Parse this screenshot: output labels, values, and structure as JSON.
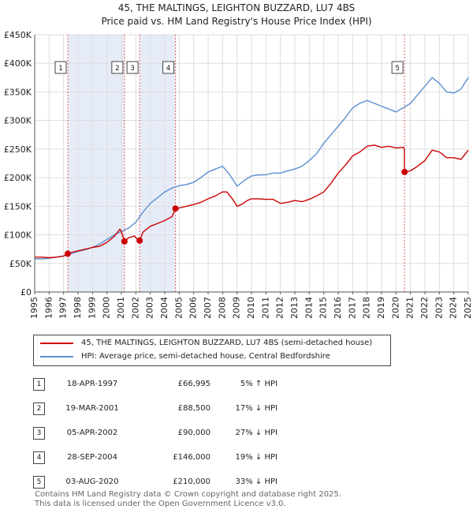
{
  "title_line1": "45, THE MALTINGS, LEIGHTON BUZZARD, LU7 4BS",
  "title_line2": "Price paid vs. HM Land Registry's House Price Index (HPI)",
  "colors": {
    "property": "#cc0000",
    "hpi": "#5b8fd0",
    "shade": "#e6ecf7",
    "vline": "#e06060"
  },
  "legend": {
    "property": "45, THE MALTINGS, LEIGHTON BUZZARD, LU7 4BS (semi-detached house)",
    "hpi": "HPI: Average price, semi-detached house, Central Bedfordshire"
  },
  "sales": [
    {
      "num": "1",
      "date": "18-APR-1997",
      "price": "£66,995",
      "hpi": "5% ↑ HPI"
    },
    {
      "num": "2",
      "date": "19-MAR-2001",
      "price": "£88,500",
      "hpi": "17% ↓ HPI"
    },
    {
      "num": "3",
      "date": "05-APR-2002",
      "price": "£90,000",
      "hpi": "27% ↓ HPI"
    },
    {
      "num": "4",
      "date": "28-SEP-2004",
      "price": "£146,000",
      "hpi": "19% ↓ HPI"
    },
    {
      "num": "5",
      "date": "03-AUG-2020",
      "price": "£210,000",
      "hpi": "33% ↓ HPI"
    }
  ],
  "footer_line1": "Contains HM Land Registry data © Crown copyright and database right 2025.",
  "footer_line2": "This data is licensed under the Open Government Licence v3.0.",
  "chart_data": {
    "type": "line",
    "title": "45, THE MALTINGS, LEIGHTON BUZZARD, LU7 4BS",
    "subtitle": "Price paid vs. HM Land Registry's House Price Index (HPI)",
    "xlabel": "",
    "ylabel": "",
    "xlim": [
      1995,
      2025
    ],
    "ylim": [
      0,
      450000
    ],
    "y_ticks": [
      0,
      50000,
      100000,
      150000,
      200000,
      250000,
      300000,
      350000,
      400000,
      450000
    ],
    "y_tick_labels": [
      "£0",
      "£50K",
      "£100K",
      "£150K",
      "£200K",
      "£250K",
      "£300K",
      "£350K",
      "£400K",
      "£450K"
    ],
    "x_ticks": [
      1995,
      1996,
      1997,
      1998,
      1999,
      2000,
      2001,
      2002,
      2003,
      2004,
      2005,
      2006,
      2007,
      2008,
      2009,
      2010,
      2011,
      2012,
      2013,
      2014,
      2015,
      2016,
      2017,
      2018,
      2019,
      2020,
      2021,
      2022,
      2023,
      2024,
      2025
    ],
    "grid": true,
    "sale_markers": [
      {
        "label": "1",
        "x": 1997.29,
        "y": 66995
      },
      {
        "label": "2",
        "x": 2001.21,
        "y": 88500
      },
      {
        "label": "3",
        "x": 2002.26,
        "y": 90000
      },
      {
        "label": "4",
        "x": 2004.74,
        "y": 146000
      },
      {
        "label": "5",
        "x": 2020.59,
        "y": 210000
      }
    ],
    "shaded_ranges": [
      [
        1997.29,
        2001.21
      ],
      [
        2002.26,
        2004.74
      ]
    ],
    "series": [
      {
        "name": "45, THE MALTINGS, LEIGHTON BUZZARD, LU7 4BS (semi-detached house)",
        "x": [
          1995,
          1995.5,
          1996,
          1996.5,
          1997,
          1997.29,
          1997.5,
          1998,
          1998.5,
          1999,
          1999.5,
          2000,
          2000.5,
          2000.9,
          2001,
          2001.21,
          2001.5,
          2001.9,
          2002,
          2002.26,
          2002.5,
          2003,
          2003.5,
          2004,
          2004.5,
          2004.74,
          2005,
          2005.5,
          2006,
          2006.5,
          2007,
          2007.5,
          2008,
          2008.3,
          2008.7,
          2009,
          2009.3,
          2009.7,
          2010,
          2010.5,
          2011,
          2011.5,
          2012,
          2012.5,
          2013,
          2013.5,
          2014,
          2014.5,
          2015,
          2015.5,
          2016,
          2016.5,
          2017,
          2017.5,
          2018,
          2018.5,
          2019,
          2019.5,
          2020,
          2020.5,
          2020.58,
          2020.59,
          2021,
          2021.5,
          2022,
          2022.5,
          2023,
          2023.5,
          2024,
          2024.5,
          2025
        ],
        "values": [
          61000,
          61000,
          60000,
          61000,
          63000,
          66995,
          69000,
          72000,
          75000,
          78000,
          80000,
          87000,
          97000,
          110000,
          105000,
          88500,
          95000,
          98000,
          95000,
          90000,
          105000,
          115000,
          120000,
          125000,
          132000,
          146000,
          147000,
          150000,
          153000,
          157000,
          163000,
          168000,
          175000,
          175000,
          162000,
          150000,
          153000,
          160000,
          163000,
          163000,
          162000,
          162000,
          155000,
          157000,
          160000,
          158000,
          162000,
          168000,
          175000,
          190000,
          208000,
          222000,
          238000,
          245000,
          255000,
          257000,
          253000,
          255000,
          252000,
          253000,
          250000,
          210000,
          212000,
          220000,
          230000,
          248000,
          245000,
          235000,
          235000,
          232000,
          248000
        ]
      },
      {
        "name": "HPI: Average price, semi-detached house, Central Bedfordshire",
        "x": [
          1995,
          1995.5,
          1996,
          1996.5,
          1997,
          1997.5,
          1998,
          1998.5,
          1999,
          1999.5,
          2000,
          2000.5,
          2001,
          2001.5,
          2002,
          2002.5,
          2003,
          2003.5,
          2004,
          2004.5,
          2005,
          2005.5,
          2006,
          2006.5,
          2007,
          2007.5,
          2008,
          2008.5,
          2009,
          2009.5,
          2010,
          2010.5,
          2011,
          2011.5,
          2012,
          2012.5,
          2013,
          2013.5,
          2014,
          2014.5,
          2015,
          2015.5,
          2016,
          2016.5,
          2017,
          2017.5,
          2018,
          2018.5,
          2019,
          2019.5,
          2020,
          2020.5,
          2021,
          2021.5,
          2022,
          2022.5,
          2023,
          2023.5,
          2024,
          2024.5,
          2025
        ],
        "values": [
          58000,
          58000,
          59000,
          61000,
          63000,
          67000,
          71000,
          74000,
          78000,
          84000,
          92000,
          100000,
          106000,
          112000,
          122000,
          140000,
          155000,
          165000,
          175000,
          182000,
          186000,
          188000,
          192000,
          200000,
          210000,
          215000,
          220000,
          205000,
          185000,
          195000,
          203000,
          205000,
          205000,
          208000,
          208000,
          212000,
          215000,
          220000,
          230000,
          242000,
          260000,
          275000,
          290000,
          305000,
          322000,
          330000,
          335000,
          330000,
          325000,
          320000,
          315000,
          322000,
          330000,
          345000,
          360000,
          375000,
          365000,
          350000,
          348000,
          355000,
          375000
        ]
      }
    ]
  }
}
